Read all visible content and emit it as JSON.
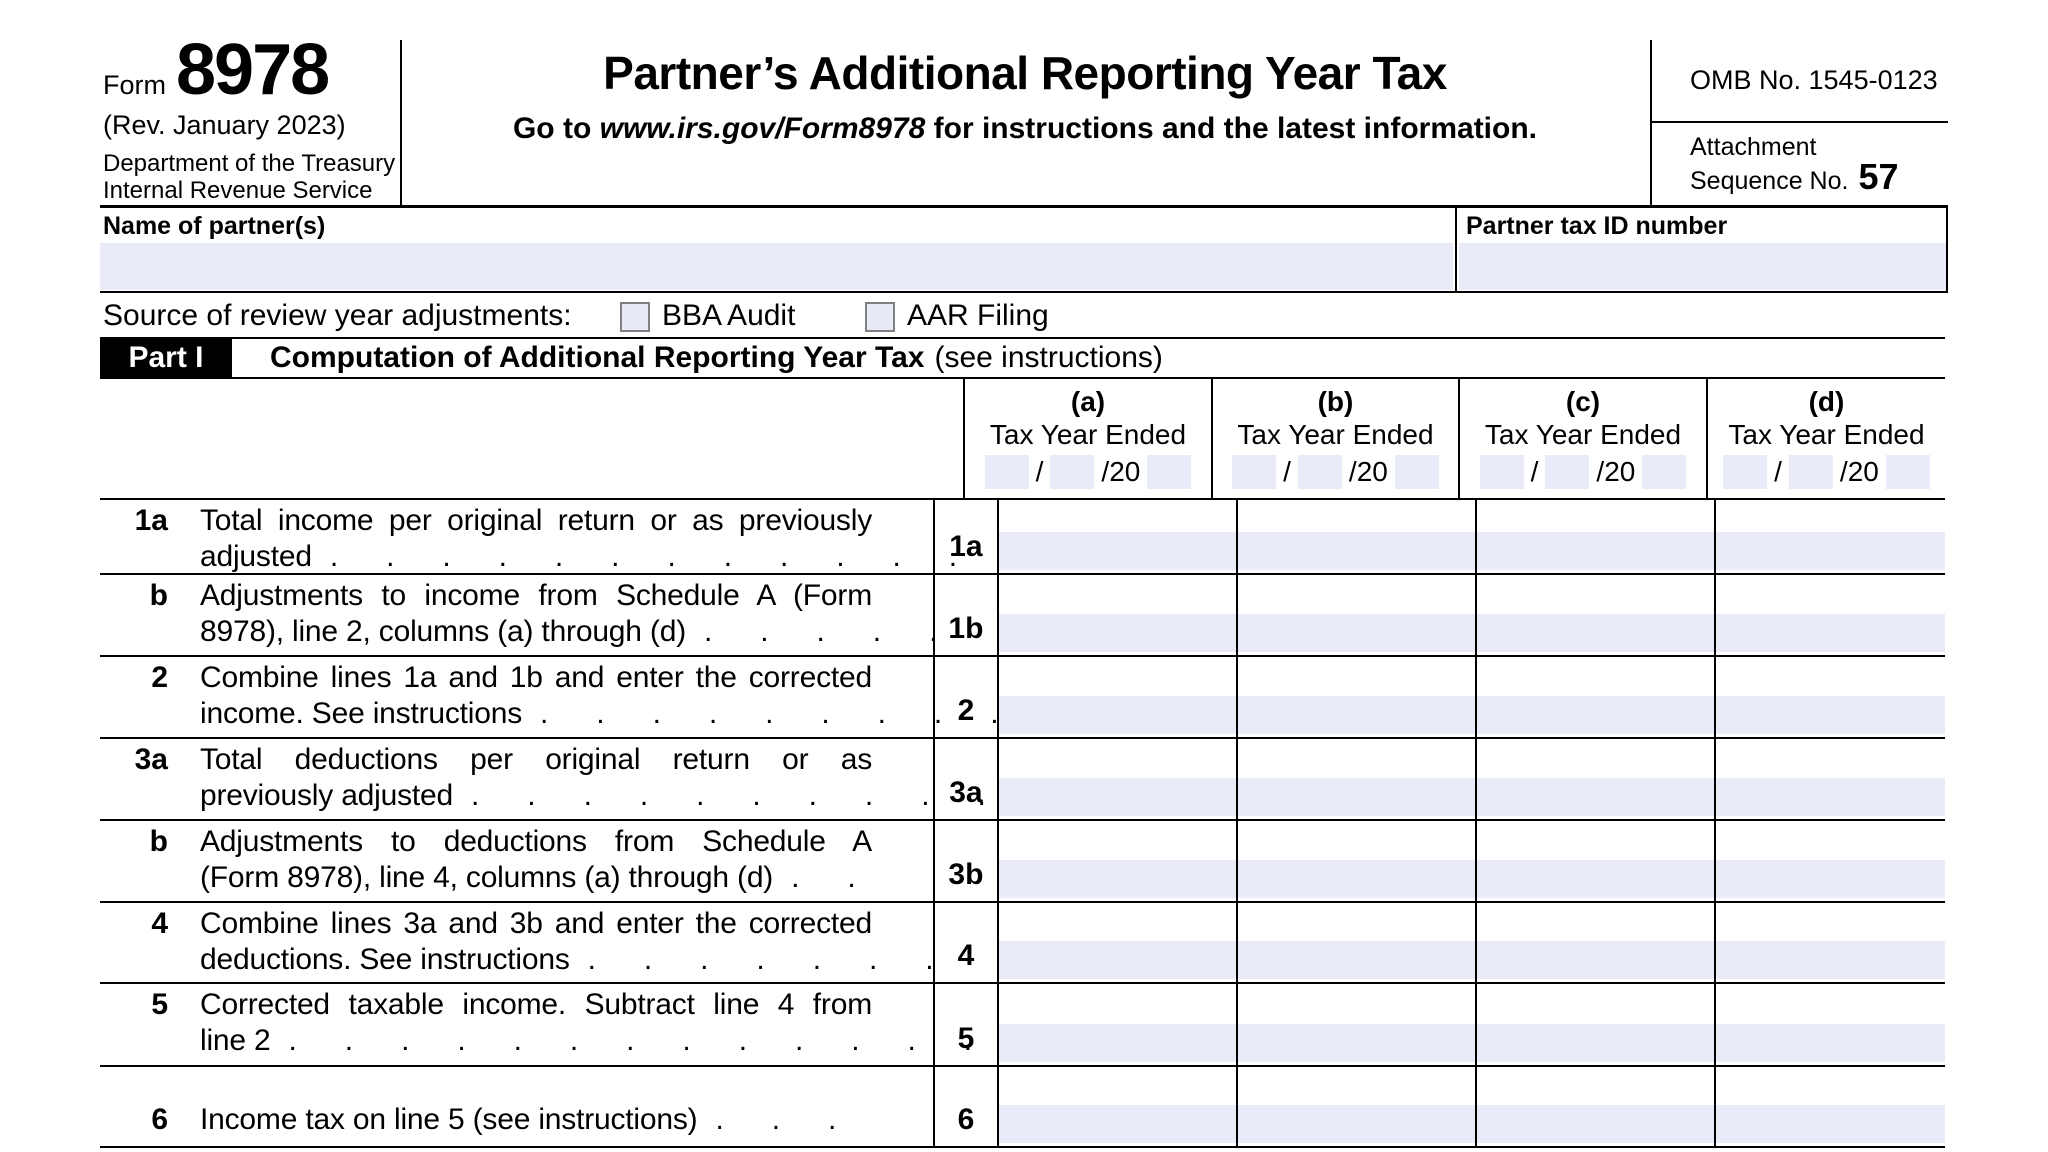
{
  "colors": {
    "input_fill": "#e9ecf8",
    "checkbox_fill": "#e8eaf6",
    "checkbox_border": "#808080",
    "part_header_bg": "#000000"
  },
  "header": {
    "form_word": "Form",
    "form_number": "8978",
    "revision": "(Rev. January 2023)",
    "dept1": "Department of the Treasury",
    "dept2": "Internal Revenue Service",
    "title": "Partner’s Additional Reporting Year Tax",
    "goto_prefix": "Go to ",
    "goto_url": "www.irs.gov/Form8978",
    "goto_suffix": " for instructions and the latest information.",
    "omb": "OMB No. 1545-0123",
    "attachment_line1": "Attachment",
    "attachment_line2": "Sequence No.",
    "attachment_seq": "57"
  },
  "identity": {
    "name_label": "Name of partner(s)",
    "name_value": "",
    "tin_label": "Partner tax ID number",
    "tin_value": ""
  },
  "source": {
    "label": "Source of review year adjustments:",
    "options": [
      {
        "label": "BBA Audit",
        "checked": false
      },
      {
        "label": "AAR Filing",
        "checked": false
      }
    ]
  },
  "part1": {
    "label": "Part I",
    "title": "Computation of Additional Reporting Year Tax",
    "subtitle": "(see instructions)"
  },
  "table": {
    "columns": [
      {
        "letter": "(a)",
        "sublabel": "Tax Year Ended",
        "sep1": "/",
        "sep2": "/20",
        "month": "",
        "day": "",
        "year": ""
      },
      {
        "letter": "(b)",
        "sublabel": "Tax Year Ended",
        "sep1": "/",
        "sep2": "/20",
        "month": "",
        "day": "",
        "year": ""
      },
      {
        "letter": "(c)",
        "sublabel": "Tax Year Ended",
        "sep1": "/",
        "sep2": "/20",
        "month": "",
        "day": "",
        "year": ""
      },
      {
        "letter": "(d)",
        "sublabel": "Tax Year Ended",
        "sep1": "/",
        "sep2": "/20",
        "month": "",
        "day": "",
        "year": ""
      }
    ],
    "rows": [
      {
        "num": "1a",
        "code": "1a",
        "line1": "Total income per original return or as previously",
        "line2": "adjusted",
        "dots": ". . . . . . . . . . . . .",
        "single": false,
        "values": [
          "",
          "",
          "",
          ""
        ]
      },
      {
        "num": "b",
        "code": "1b",
        "line1": "Adjustments to income from Schedule A (Form",
        "line2": "8978), line 2, columns (a) through (d)",
        "dots": ". . . . .",
        "single": false,
        "values": [
          "",
          "",
          "",
          ""
        ]
      },
      {
        "num": "2",
        "code": "2",
        "line1": "Combine lines 1a and 1b and enter the corrected",
        "line2": "income. See instructions",
        "dots": ". . . . . . . . .",
        "single": false,
        "values": [
          "",
          "",
          "",
          ""
        ]
      },
      {
        "num": "3a",
        "code": "3a",
        "line1": "Total deductions per original return or as",
        "line2": "previously adjusted",
        "dots": ". . . . . . . . . .",
        "single": false,
        "values": [
          "",
          "",
          "",
          ""
        ]
      },
      {
        "num": "b",
        "code": "3b",
        "line1": "Adjustments to deductions from Schedule A",
        "line2": "(Form 8978), line 4, columns (a) through (d)",
        "dots": ". .",
        "single": false,
        "values": [
          "",
          "",
          "",
          ""
        ]
      },
      {
        "num": "4",
        "code": "4",
        "line1": "Combine lines 3a and 3b and enter the corrected",
        "line2": "deductions. See instructions",
        "dots": ". . . . . . .",
        "single": false,
        "values": [
          "",
          "",
          "",
          ""
        ]
      },
      {
        "num": "5",
        "code": "5",
        "line1": "Corrected taxable income. Subtract line 4 from",
        "line2": "line 2",
        "dots": ". . . . . . . . . . . . . .",
        "single": false,
        "values": [
          "",
          "",
          "",
          ""
        ]
      },
      {
        "num": "6",
        "code": "6",
        "line1": "",
        "line2": "Income tax on line 5 (see instructions)",
        "dots": ". . .",
        "single": true,
        "values": [
          "",
          "",
          "",
          ""
        ]
      }
    ]
  }
}
